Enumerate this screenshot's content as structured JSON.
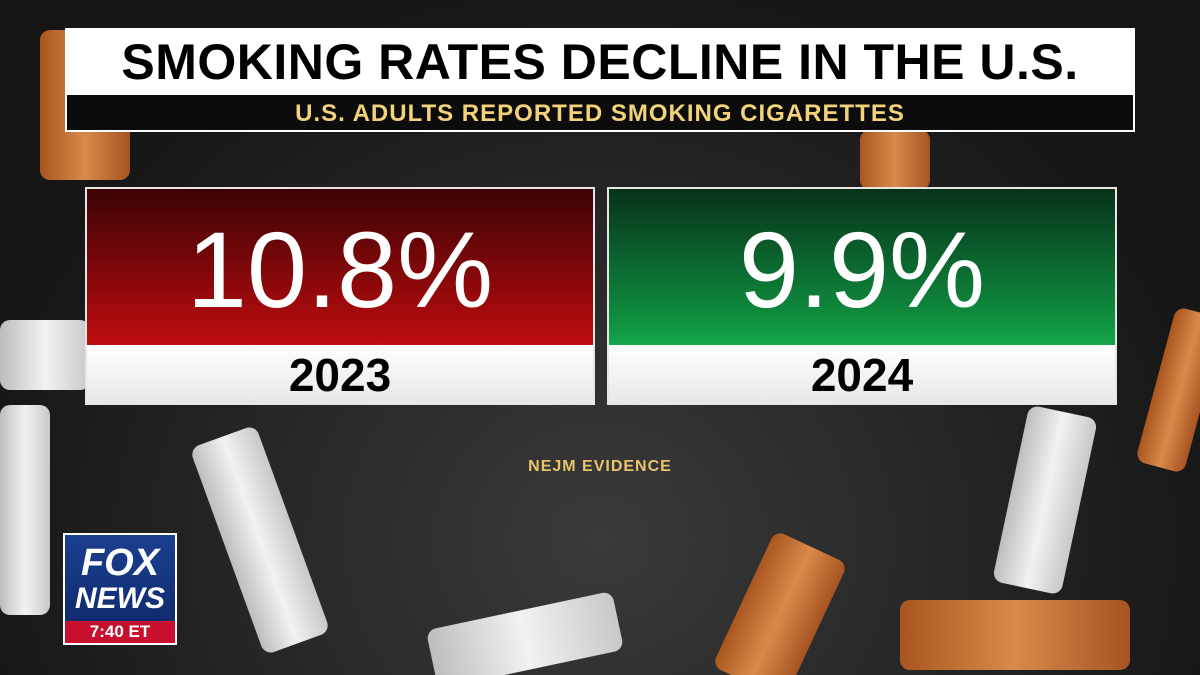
{
  "header": {
    "title": "SMOKING RATES DECLINE IN THE U.S.",
    "subtitle": "U.S. ADULTS REPORTED SMOKING CIGARETTES"
  },
  "cards": [
    {
      "value": "10.8%",
      "year": "2023"
    },
    {
      "value": "9.9%",
      "year": "2024"
    }
  ],
  "source": "NEJM EVIDENCE",
  "logo": {
    "line1": "FOX",
    "line2": "NEWS",
    "time": "7:40 ET"
  }
}
